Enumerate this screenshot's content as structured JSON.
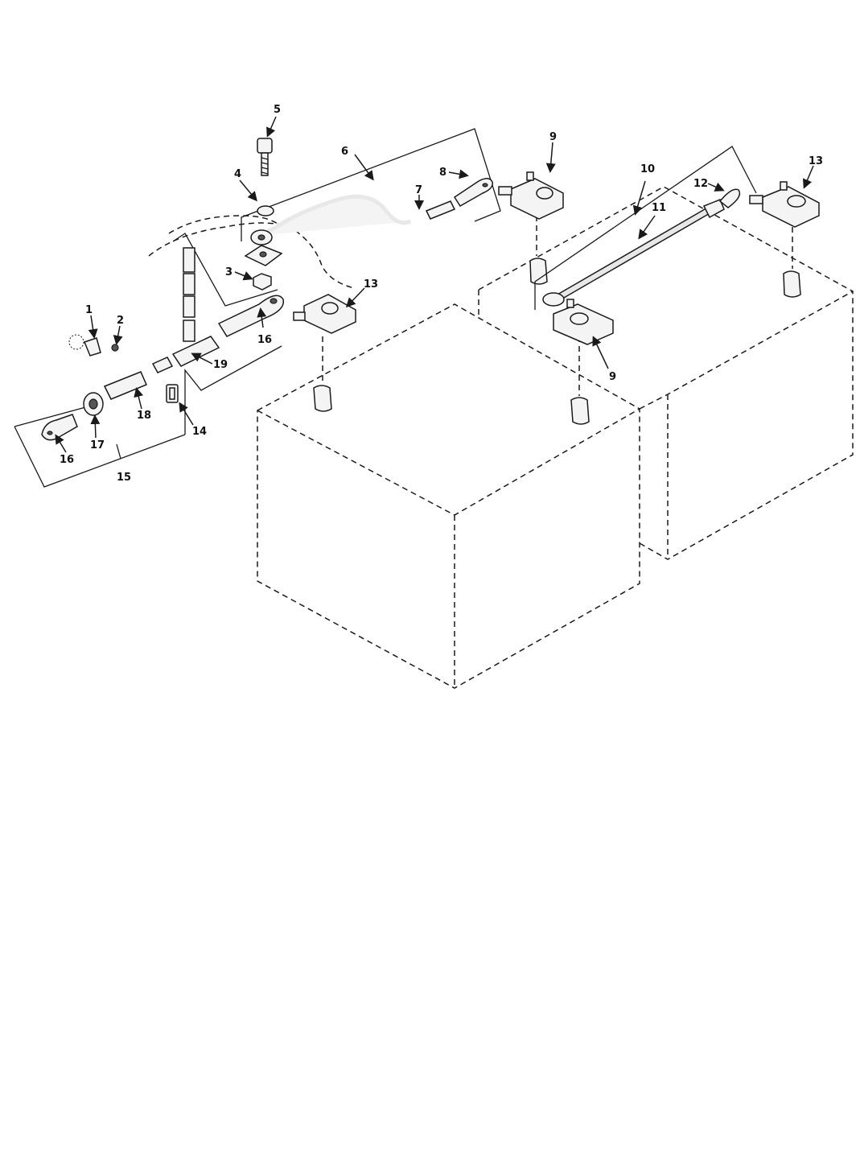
{
  "callouts": {
    "c1": "1",
    "c2": "2",
    "c3": "3",
    "c4": "4",
    "c5": "5",
    "c6": "6",
    "c7": "7",
    "c8": "8",
    "c9a": "9",
    "c9b": "9",
    "c10": "10",
    "c11": "11",
    "c12": "12",
    "c13a": "13",
    "c13b": "13",
    "c14": "14",
    "c15": "15",
    "c16a": "16",
    "c16b": "16",
    "c17": "17",
    "c18": "18",
    "c19": "19"
  }
}
